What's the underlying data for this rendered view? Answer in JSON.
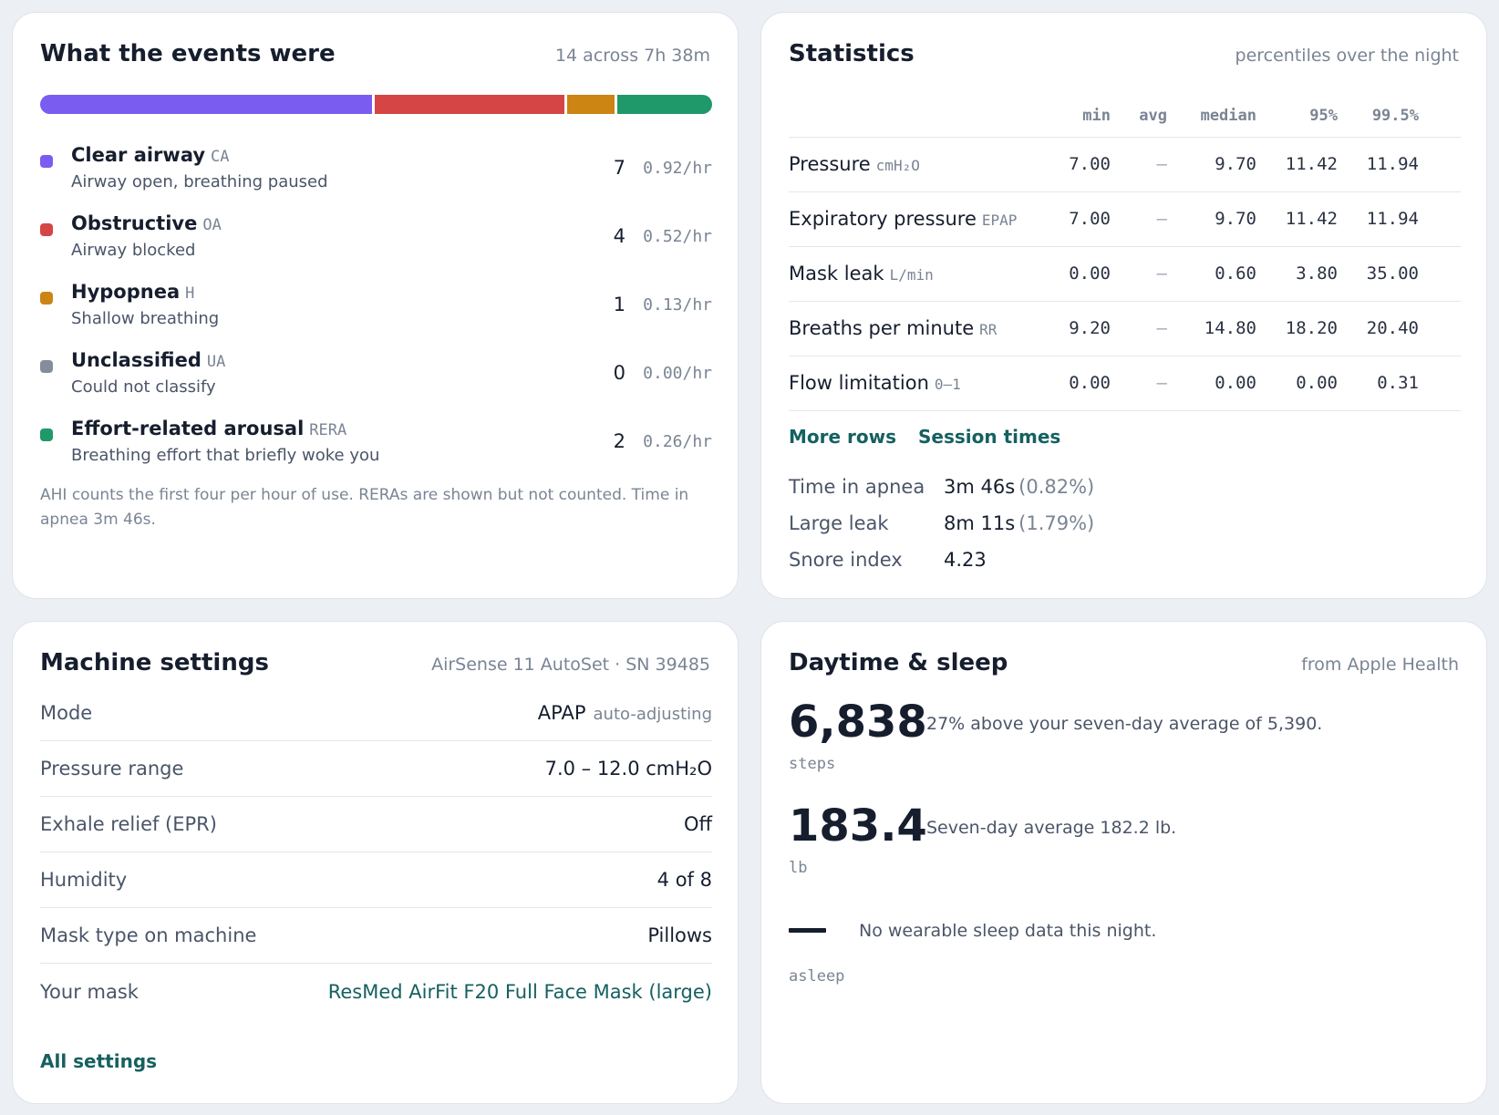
{
  "events": {
    "title": "What the events were",
    "subtitle": "14 across 7h 38m",
    "bar": [
      {
        "name": "CA",
        "value": 7,
        "color": "#7b5cf0"
      },
      {
        "name": "OA",
        "value": 4,
        "color": "#d64545"
      },
      {
        "name": "H",
        "value": 1,
        "color": "#cc8413"
      },
      {
        "name": "RERA",
        "value": 2,
        "color": "#20996a"
      }
    ],
    "items": [
      {
        "name": "Clear airway",
        "abbr": "CA",
        "desc": "Airway open, breathing paused",
        "count": "7",
        "rate": "0.92/hr",
        "color": "#7b5cf0"
      },
      {
        "name": "Obstructive",
        "abbr": "OA",
        "desc": "Airway blocked",
        "count": "4",
        "rate": "0.52/hr",
        "color": "#d64545"
      },
      {
        "name": "Hypopnea",
        "abbr": "H",
        "desc": "Shallow breathing",
        "count": "1",
        "rate": "0.13/hr",
        "color": "#cc8413"
      },
      {
        "name": "Unclassified",
        "abbr": "UA",
        "desc": "Could not classify",
        "count": "0",
        "rate": "0.00/hr",
        "color": "#858d9c"
      },
      {
        "name": "Effort-related arousal",
        "abbr": "RERA",
        "desc": "Breathing effort that briefly woke you",
        "count": "2",
        "rate": "0.26/hr",
        "color": "#20996a"
      }
    ],
    "note": "AHI counts the first four per hour of use. RERAs are shown but not counted. Time in apnea 3m 46s."
  },
  "stats": {
    "title": "Statistics",
    "subtitle": "percentiles over the night",
    "columns": [
      "min",
      "avg",
      "median",
      "95%",
      "99.5%"
    ],
    "rows": [
      {
        "metric": "Pressure",
        "unit": "cmH₂O",
        "min": "7.00",
        "avg": "–",
        "median": "9.70",
        "p95": "11.42",
        "p995": "11.94"
      },
      {
        "metric": "Expiratory pressure",
        "unit": "EPAP",
        "min": "7.00",
        "avg": "–",
        "median": "9.70",
        "p95": "11.42",
        "p995": "11.94"
      },
      {
        "metric": "Mask leak",
        "unit": "L/min",
        "min": "0.00",
        "avg": "–",
        "median": "0.60",
        "p95": "3.80",
        "p995": "35.00"
      },
      {
        "metric": "Breaths per minute",
        "unit": "RR",
        "min": "9.20",
        "avg": "–",
        "median": "14.80",
        "p95": "18.20",
        "p995": "20.40"
      },
      {
        "metric": "Flow limitation",
        "unit": "0–1",
        "min": "0.00",
        "avg": "–",
        "median": "0.00",
        "p95": "0.00",
        "p995": "0.31"
      }
    ],
    "links": {
      "more_rows": "More rows",
      "session_times": "Session times"
    },
    "summary": [
      {
        "label": "Time in apnea",
        "value": "3m 46s",
        "pct": "(0.82%)"
      },
      {
        "label": "Large leak",
        "value": "8m 11s",
        "pct": "(1.79%)"
      },
      {
        "label": "Snore index",
        "value": "4.23",
        "pct": ""
      }
    ]
  },
  "machine": {
    "title": "Machine settings",
    "subtitle": "AirSense 11 AutoSet · SN 39485",
    "rows": [
      {
        "label": "Mode",
        "value": "APAP",
        "note": "auto-adjusting"
      },
      {
        "label": "Pressure range",
        "value": "7.0 – 12.0 cmH₂O",
        "note": ""
      },
      {
        "label": "Exhale relief (EPR)",
        "value": "Off",
        "note": ""
      },
      {
        "label": "Humidity",
        "value": "4 of 8",
        "note": ""
      },
      {
        "label": "Mask type on machine",
        "value": "Pillows",
        "note": ""
      },
      {
        "label": "Your mask",
        "value": "ResMed AirFit F20 Full Face Mask (large)",
        "note": ""
      }
    ],
    "all_settings": "All settings"
  },
  "daytime": {
    "title": "Daytime & sleep",
    "subtitle": "from Apple Health",
    "steps": {
      "value": "6,838",
      "unit": "steps",
      "note": "27% above your seven-day average of 5,390."
    },
    "weight": {
      "value": "183.4",
      "unit": "lb",
      "note": "Seven-day average 182.2 lb."
    },
    "sleep": {
      "value": "—",
      "unit": "asleep",
      "note": "No wearable sleep data this night."
    }
  }
}
